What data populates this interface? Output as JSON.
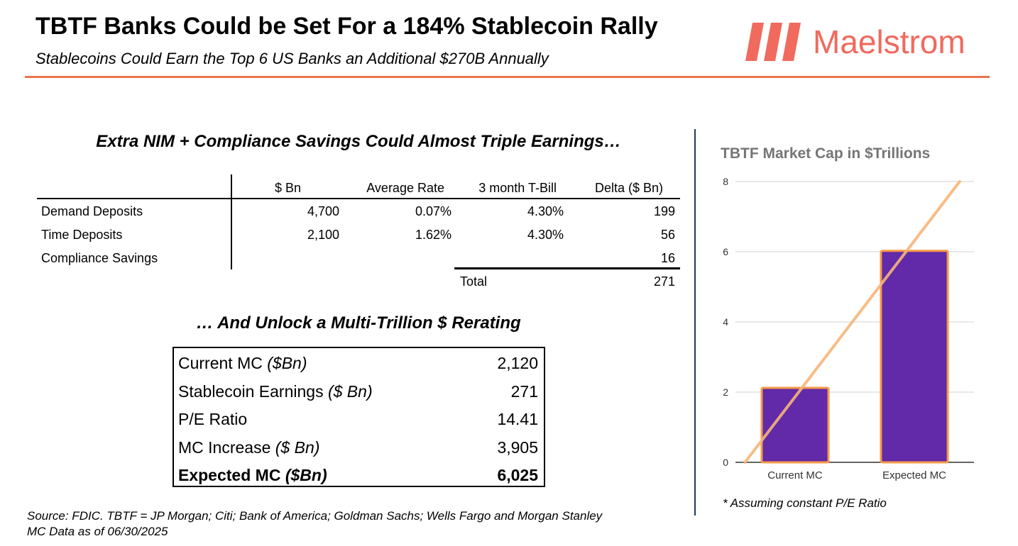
{
  "header": {
    "title": "TBTF Banks Could be Set For a 184% Stablecoin Rally",
    "subtitle": "Stablecoins Could Earn the Top 6 US Banks an Additional $270B Annually",
    "brand_name": "Maelstrom",
    "brand_color": "#f06a5e",
    "rule_color": "#e8744a"
  },
  "nim_section": {
    "heading": "Extra NIM + Compliance Savings Could Almost Triple Earnings…",
    "columns": [
      "$ Bn",
      "Average Rate",
      "3 month T-Bill",
      "Delta ($ Bn)"
    ],
    "rows": [
      {
        "label": "Demand Deposits",
        "bn": "4,700",
        "avg_rate": "0.07%",
        "tbill": "4.30%",
        "delta": "199"
      },
      {
        "label": "Time Deposits",
        "bn": "2,100",
        "avg_rate": "1.62%",
        "tbill": "4.30%",
        "delta": "56"
      },
      {
        "label": "Compliance Savings",
        "bn": "",
        "avg_rate": "",
        "tbill": "",
        "delta": "16"
      }
    ],
    "total_label": "Total",
    "total_value": "271"
  },
  "rerating_section": {
    "heading": "… And Unlock a Multi-Trillion $ Rerating",
    "rows": [
      {
        "label": "Current MC",
        "unit": "($Bn)",
        "value": "2,120"
      },
      {
        "label": "Stablecoin Earnings",
        "unit": "($ Bn)",
        "value": "271"
      },
      {
        "label": "P/E Ratio",
        "unit": "",
        "value": "14.41"
      },
      {
        "label": "MC Increase",
        "unit": "($ Bn)",
        "value": "3,905"
      },
      {
        "label": "Expected MC",
        "unit": "($Bn)",
        "value": "6,025"
      }
    ]
  },
  "source": {
    "line1": "Source: FDIC. TBTF = JP Morgan; Citi; Bank of America; Goldman Sachs; Wells Fargo and Morgan Stanley",
    "line2": "MC Data as of 06/30/2025"
  },
  "chart_note": "* Assuming constant P/E Ratio",
  "chart_data": {
    "type": "bar",
    "title": "TBTF Market Cap in $Trillions",
    "categories": [
      "Current MC",
      "Expected MC"
    ],
    "values": [
      2.12,
      6.025
    ],
    "ylim": [
      0,
      8
    ],
    "yticks": [
      "0",
      "2",
      "4",
      "6",
      "8"
    ],
    "grid": true,
    "bar_color": "#6229a8",
    "bar_edge_color": "#f59a46",
    "trend_line": {
      "color": "#f7b57a",
      "from": [
        0.04,
        0
      ],
      "to": [
        0.94,
        8
      ]
    }
  }
}
